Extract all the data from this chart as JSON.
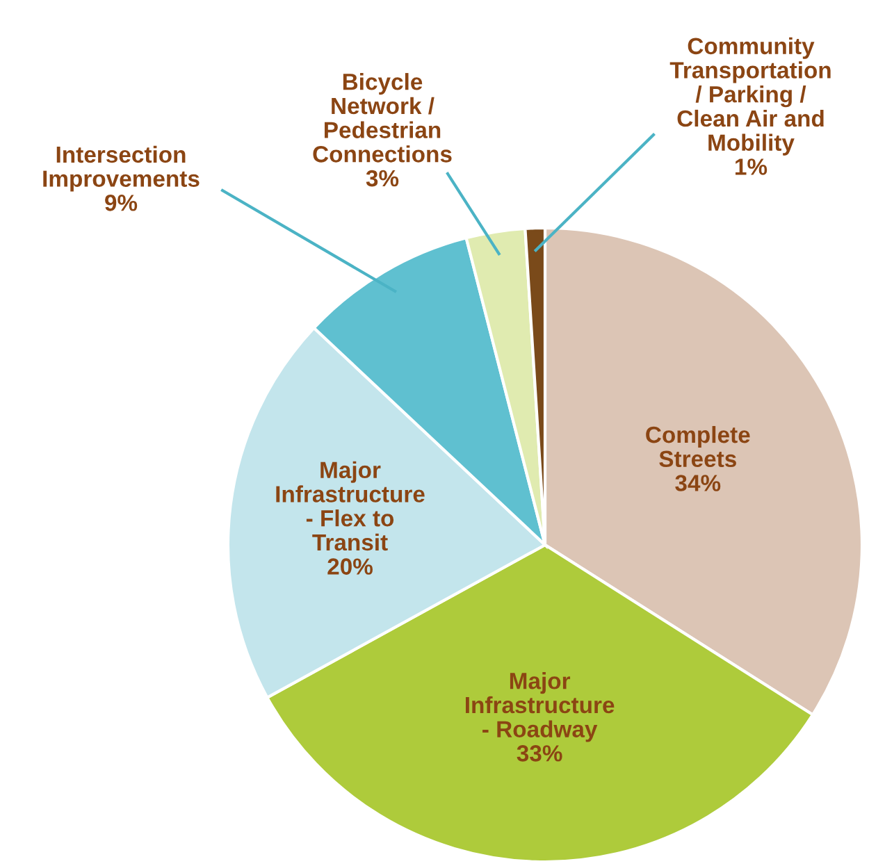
{
  "chart_data": {
    "type": "pie",
    "categories": [
      "Complete\nStreets",
      "Major\nInfrastructure\n- Roadway",
      "Major\nInfrastructure\n- Flex to\nTransit",
      "Intersection\nImprovements",
      "Bicycle\nNetwork /\nPedestrian\nConnections",
      "Community\nTransportation\n/ Parking /\nClean Air and\nMobility"
    ],
    "values": [
      34,
      33,
      20,
      9,
      3,
      1
    ],
    "value_labels": [
      "34%",
      "33%",
      "20%",
      "9%",
      "3%",
      "1%"
    ],
    "colors": [
      "#dcc5b5",
      "#aecb3b",
      "#c3e5ec",
      "#5fc0d0",
      "#e0ebb0",
      "#7a4a1a"
    ]
  }
}
